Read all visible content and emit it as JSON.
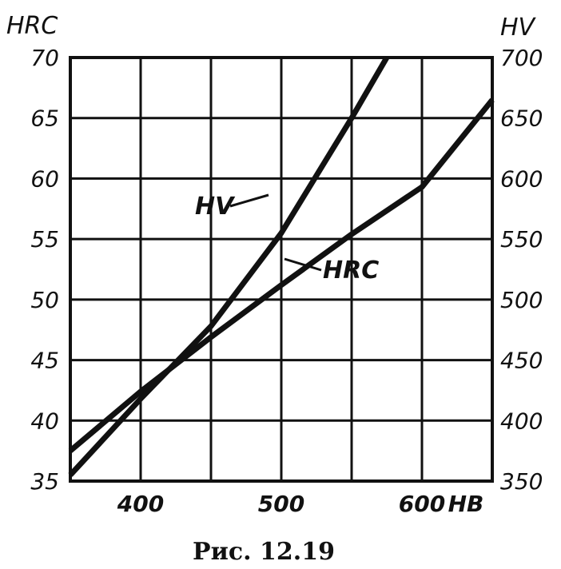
{
  "chart_data": {
    "type": "line",
    "title": "",
    "caption": "Рис. 12.19",
    "x": {
      "label": "HB",
      "range": [
        350,
        650
      ],
      "ticks": [
        400,
        500,
        600
      ],
      "grid_step": 50
    },
    "y_left": {
      "label": "HRC",
      "range": [
        35,
        70
      ],
      "ticks": [
        35,
        40,
        45,
        50,
        55,
        60,
        65,
        70
      ]
    },
    "y_right": {
      "label": "HV",
      "range": [
        350,
        700
      ],
      "ticks": [
        350,
        400,
        450,
        500,
        550,
        600,
        650,
        700
      ]
    },
    "grid": true,
    "series": [
      {
        "name": "HV",
        "axis": "y_right",
        "x": [
          350,
          400,
          450,
          500,
          550,
          575
        ],
        "values": [
          355,
          418,
          478,
          555,
          650,
          700
        ]
      },
      {
        "name": "HRC",
        "axis": "y_left",
        "x": [
          350,
          400,
          450,
          500,
          550,
          600,
          650
        ],
        "values": [
          37.5,
          42.4,
          46.9,
          51.2,
          55.4,
          59.3,
          66.5
        ]
      }
    ]
  }
}
